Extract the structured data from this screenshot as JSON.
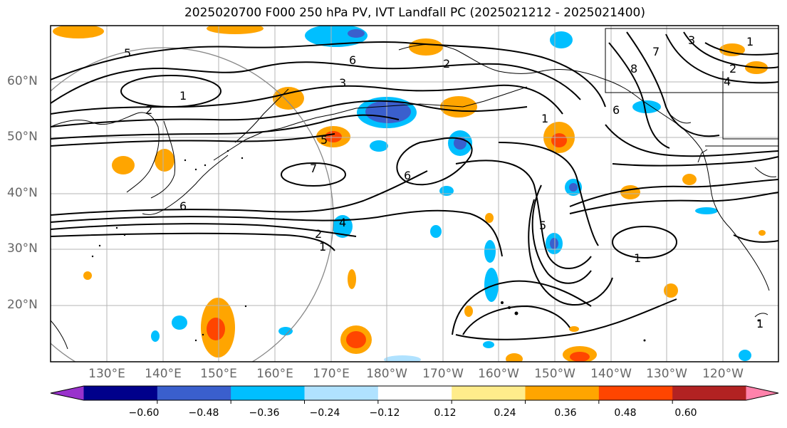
{
  "title": "2025020700 F000 250 hPa PV, IVT Landfall PC (2025021212 - 2025021400)",
  "lat_labels": [
    "60°N",
    "50°N",
    "40°N",
    "30°N",
    "20°N"
  ],
  "lon_labels": [
    "130°E",
    "140°E",
    "150°E",
    "160°E",
    "170°E",
    "180°W",
    "170°W",
    "160°W",
    "150°W",
    "140°W",
    "130°W",
    "120°W"
  ],
  "colorbar": {
    "ticks": [
      "−0.60",
      "−0.48",
      "−0.36",
      "−0.24",
      "−0.12",
      "0.12",
      "0.24",
      "0.36",
      "0.48",
      "0.60"
    ],
    "colors": [
      "#9932cc",
      "#00008b",
      "#3a5fcd",
      "#00bfff",
      "#b0e2ff",
      "#ffffff",
      "#ffec8b",
      "#ffa500",
      "#ff4500",
      "#b22222",
      "#ff82ab"
    ]
  },
  "contour_labels": [
    "5",
    "6",
    "1",
    "2",
    "3",
    "7",
    "6",
    "5",
    "4",
    "1",
    "2",
    "6",
    "1",
    "6",
    "5",
    "3",
    "2",
    "4",
    "1",
    "8",
    "7",
    "1",
    "2",
    "1"
  ]
}
